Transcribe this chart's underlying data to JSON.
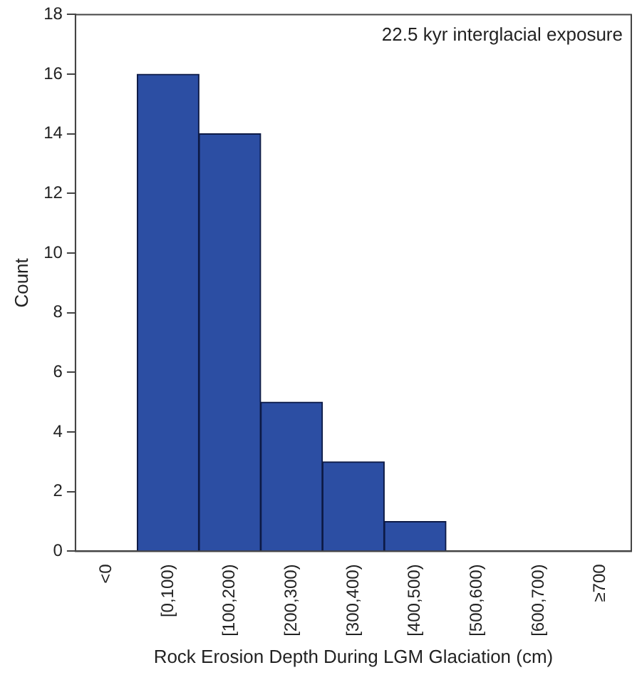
{
  "chart_data": {
    "type": "bar",
    "xlabel": "Rock Erosion Depth During LGM Glaciation (cm)",
    "ylabel": "Count",
    "annotations": [
      "22.5 kyr interglacial exposure"
    ],
    "categories": [
      "<0",
      "[0,100)",
      "[100,200)",
      "[200,300)",
      "[300,400)",
      "[400,500)",
      "[500,600)",
      "[600,700)",
      "≥700"
    ],
    "values": [
      0,
      16,
      14,
      5,
      3,
      1,
      0,
      0,
      0
    ],
    "color": "#2c4ea3",
    "ylim": [
      0,
      18
    ],
    "yticks": [
      0,
      2,
      4,
      6,
      8,
      10,
      12,
      14,
      16,
      18
    ],
    "grid": false,
    "legend": false
  }
}
